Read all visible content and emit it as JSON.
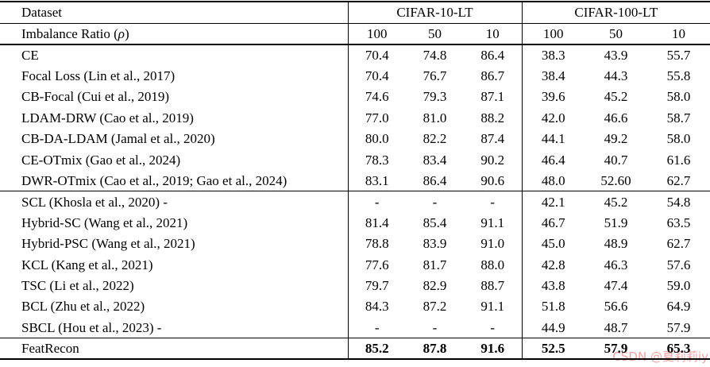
{
  "table": {
    "corner": {
      "dataset": "Dataset"
    },
    "imbalance": {
      "prefix": "Imbalance Ratio (",
      "rho": "ρ",
      "suffix": ")"
    },
    "groups": [
      "CIFAR-10-LT",
      "CIFAR-100-LT"
    ],
    "ratio_ticks": [
      "100",
      "50",
      "10",
      "100",
      "50",
      "10"
    ],
    "sections": [
      {
        "rows": [
          {
            "method": "CE",
            "values": [
              "70.4",
              "74.8",
              "86.4",
              "38.3",
              "43.9",
              "55.7"
            ]
          },
          {
            "method": "Focal Loss (Lin et al., 2017)",
            "values": [
              "70.4",
              "76.7",
              "86.7",
              "38.4",
              "44.3",
              "55.8"
            ]
          },
          {
            "method": "CB-Focal (Cui et al., 2019)",
            "values": [
              "74.6",
              "79.3",
              "87.1",
              "39.6",
              "45.2",
              "58.0"
            ]
          },
          {
            "method": "LDAM-DRW (Cao et al., 2019)",
            "values": [
              "77.0",
              "81.0",
              "88.2",
              "42.0",
              "46.6",
              "58.7"
            ]
          },
          {
            "method": "CB-DA-LDAM (Jamal et al., 2020)",
            "values": [
              "80.0",
              "82.2",
              "87.4",
              "44.1",
              "49.2",
              "58.0"
            ]
          },
          {
            "method": "CE-OTmix (Gao et al., 2024)",
            "values": [
              "78.3",
              "83.4",
              "90.2",
              "46.4",
              "40.7",
              "61.6"
            ]
          },
          {
            "method": "DWR-OTmix (Cao et al., 2019; Gao et al., 2024)",
            "values": [
              "83.1",
              "86.4",
              "90.6",
              "48.0",
              "52.60",
              "62.7"
            ]
          }
        ]
      },
      {
        "rows": [
          {
            "method": "SCL (Khosla et al., 2020) -",
            "values": [
              "-",
              "-",
              "-",
              "42.1",
              "45.2",
              "54.8"
            ]
          },
          {
            "method": "Hybrid-SC (Wang et al., 2021)",
            "values": [
              "81.4",
              "85.4",
              "91.1",
              "46.7",
              "51.9",
              "63.5"
            ]
          },
          {
            "method": "Hybrid-PSC (Wang et al., 2021)",
            "values": [
              "78.8",
              "83.9",
              "91.0",
              "45.0",
              "48.9",
              "62.7"
            ]
          },
          {
            "method": "KCL (Kang et al., 2021)",
            "values": [
              "77.6",
              "81.7",
              "88.0",
              "42.8",
              "46.3",
              "57.6"
            ]
          },
          {
            "method": "TSC (Li et al., 2022)",
            "values": [
              "79.7",
              "82.9",
              "88.7",
              "43.8",
              "47.4",
              "59.0"
            ]
          },
          {
            "method": "BCL (Zhu et al., 2022)",
            "values": [
              "84.3",
              "87.2",
              "91.1",
              "51.8",
              "56.6",
              "64.9"
            ]
          },
          {
            "method": "SBCL (Hou et al., 2023) -",
            "values": [
              "-",
              "-",
              "-",
              "44.9",
              "48.7",
              "57.9"
            ]
          }
        ]
      },
      {
        "rows": [
          {
            "method": "FeatRecon",
            "bold_values": true,
            "values": [
              "85.2",
              "87.8",
              "91.6",
              "52.5",
              "57.9",
              "65.3"
            ]
          }
        ]
      }
    ]
  },
  "chart_data": {
    "type": "table",
    "title": "",
    "column_groups": [
      "CIFAR-10-LT",
      "CIFAR-100-LT"
    ],
    "columns": [
      "100",
      "50",
      "10",
      "100",
      "50",
      "10"
    ],
    "rows": [
      [
        "CE",
        70.4,
        74.8,
        86.4,
        38.3,
        43.9,
        55.7
      ],
      [
        "Focal Loss (Lin et al., 2017)",
        70.4,
        76.7,
        86.7,
        38.4,
        44.3,
        55.8
      ],
      [
        "CB-Focal (Cui et al., 2019)",
        74.6,
        79.3,
        87.1,
        39.6,
        45.2,
        58.0
      ],
      [
        "LDAM-DRW (Cao et al., 2019)",
        77.0,
        81.0,
        88.2,
        42.0,
        46.6,
        58.7
      ],
      [
        "CB-DA-LDAM (Jamal et al., 2020)",
        80.0,
        82.2,
        87.4,
        44.1,
        49.2,
        58.0
      ],
      [
        "CE-OTmix (Gao et al., 2024)",
        78.3,
        83.4,
        90.2,
        46.4,
        40.7,
        61.6
      ],
      [
        "DWR-OTmix (Cao et al., 2019; Gao et al., 2024)",
        83.1,
        86.4,
        90.6,
        48.0,
        52.6,
        62.7
      ],
      [
        "SCL (Khosla et al., 2020) -",
        null,
        null,
        null,
        42.1,
        45.2,
        54.8
      ],
      [
        "Hybrid-SC (Wang et al., 2021)",
        81.4,
        85.4,
        91.1,
        46.7,
        51.9,
        63.5
      ],
      [
        "Hybrid-PSC (Wang et al., 2021)",
        78.8,
        83.9,
        91.0,
        45.0,
        48.9,
        62.7
      ],
      [
        "KCL (Kang et al., 2021)",
        77.6,
        81.7,
        88.0,
        42.8,
        46.3,
        57.6
      ],
      [
        "TSC (Li et al., 2022)",
        79.7,
        82.9,
        88.7,
        43.8,
        47.4,
        59.0
      ],
      [
        "BCL (Zhu et al., 2022)",
        84.3,
        87.2,
        91.1,
        51.8,
        56.6,
        64.9
      ],
      [
        "SBCL (Hou et al., 2023) -",
        null,
        null,
        null,
        44.9,
        48.7,
        57.9
      ],
      [
        "FeatRecon",
        85.2,
        87.8,
        91.6,
        52.5,
        57.9,
        65.3
      ]
    ]
  },
  "watermark": {
    "text": "CSDN @夏莉莉iy",
    "color": "#f2a2a2"
  }
}
